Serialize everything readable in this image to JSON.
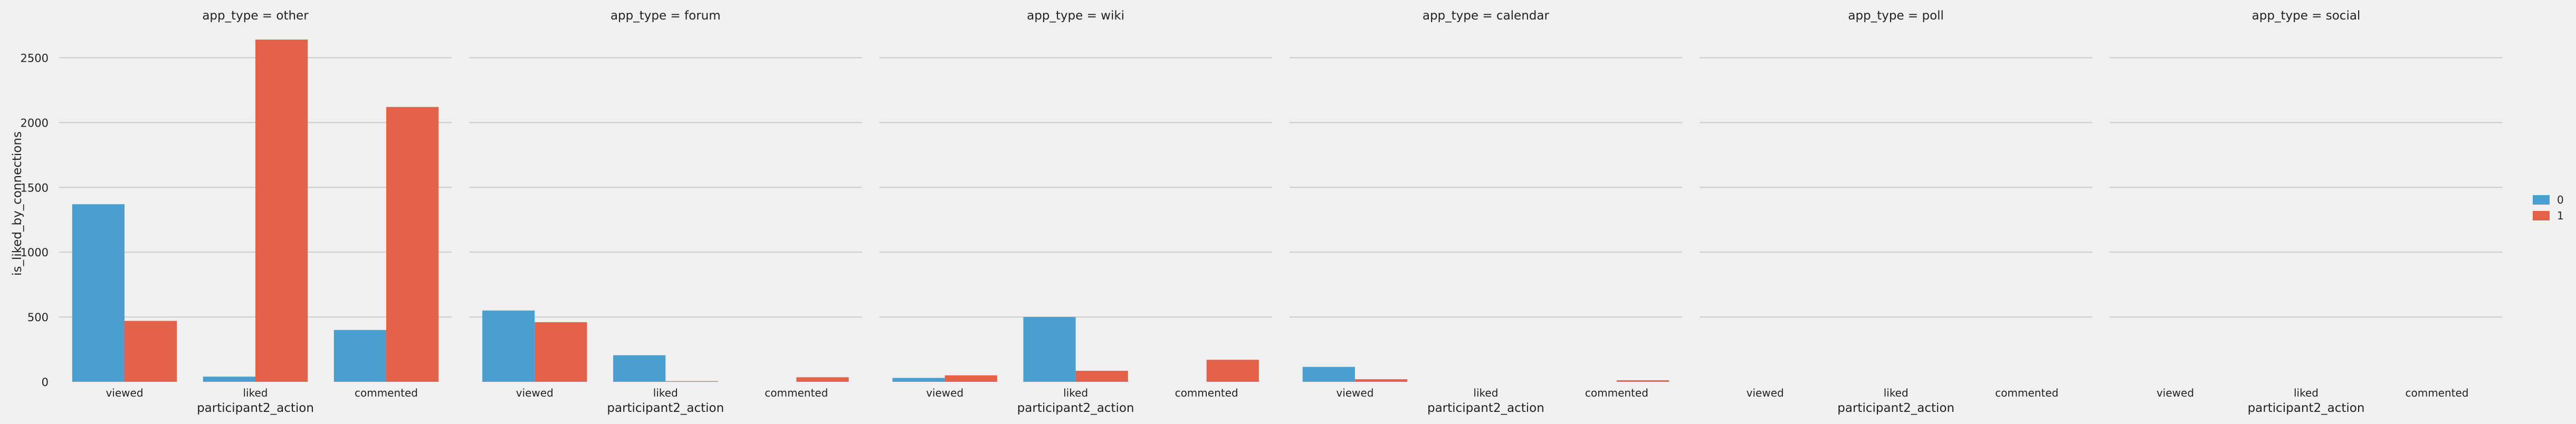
{
  "chart_data": {
    "type": "bar",
    "ylabel": "is_liked_by_connections",
    "xlabel": "participant2_action",
    "categories": [
      "viewed",
      "liked",
      "commented"
    ],
    "ylim": [
      0,
      2750
    ],
    "yticks": [
      0,
      500,
      1000,
      1500,
      2000,
      2500
    ],
    "grid": true,
    "legend_position": "right",
    "legend": {
      "entries": [
        "0",
        "1"
      ]
    },
    "hue_colors": [
      "#4a9fd0",
      "#e5624a"
    ],
    "facets": [
      {
        "title": "app_type = other",
        "series": [
          {
            "name": "0",
            "values": [
              1370,
              40,
              400
            ]
          },
          {
            "name": "1",
            "values": [
              470,
              2640,
              2120
            ]
          }
        ]
      },
      {
        "title": "app_type = forum",
        "series": [
          {
            "name": "0",
            "values": [
              550,
              205,
              0
            ]
          },
          {
            "name": "1",
            "values": [
              460,
              5,
              35
            ]
          }
        ]
      },
      {
        "title": "app_type = wiki",
        "series": [
          {
            "name": "0",
            "values": [
              30,
              500,
              0
            ]
          },
          {
            "name": "1",
            "values": [
              50,
              85,
              170
            ]
          }
        ]
      },
      {
        "title": "app_type = calendar",
        "series": [
          {
            "name": "0",
            "values": [
              115,
              0,
              0
            ]
          },
          {
            "name": "1",
            "values": [
              20,
              0,
              12
            ]
          }
        ]
      },
      {
        "title": "app_type = poll",
        "series": [
          {
            "name": "0",
            "values": [
              0,
              0,
              0
            ]
          },
          {
            "name": "1",
            "values": [
              0,
              0,
              0
            ]
          }
        ]
      },
      {
        "title": "app_type = social",
        "series": [
          {
            "name": "0",
            "values": [
              0,
              0,
              0
            ]
          },
          {
            "name": "1",
            "values": [
              0,
              0,
              0
            ]
          }
        ]
      }
    ]
  }
}
